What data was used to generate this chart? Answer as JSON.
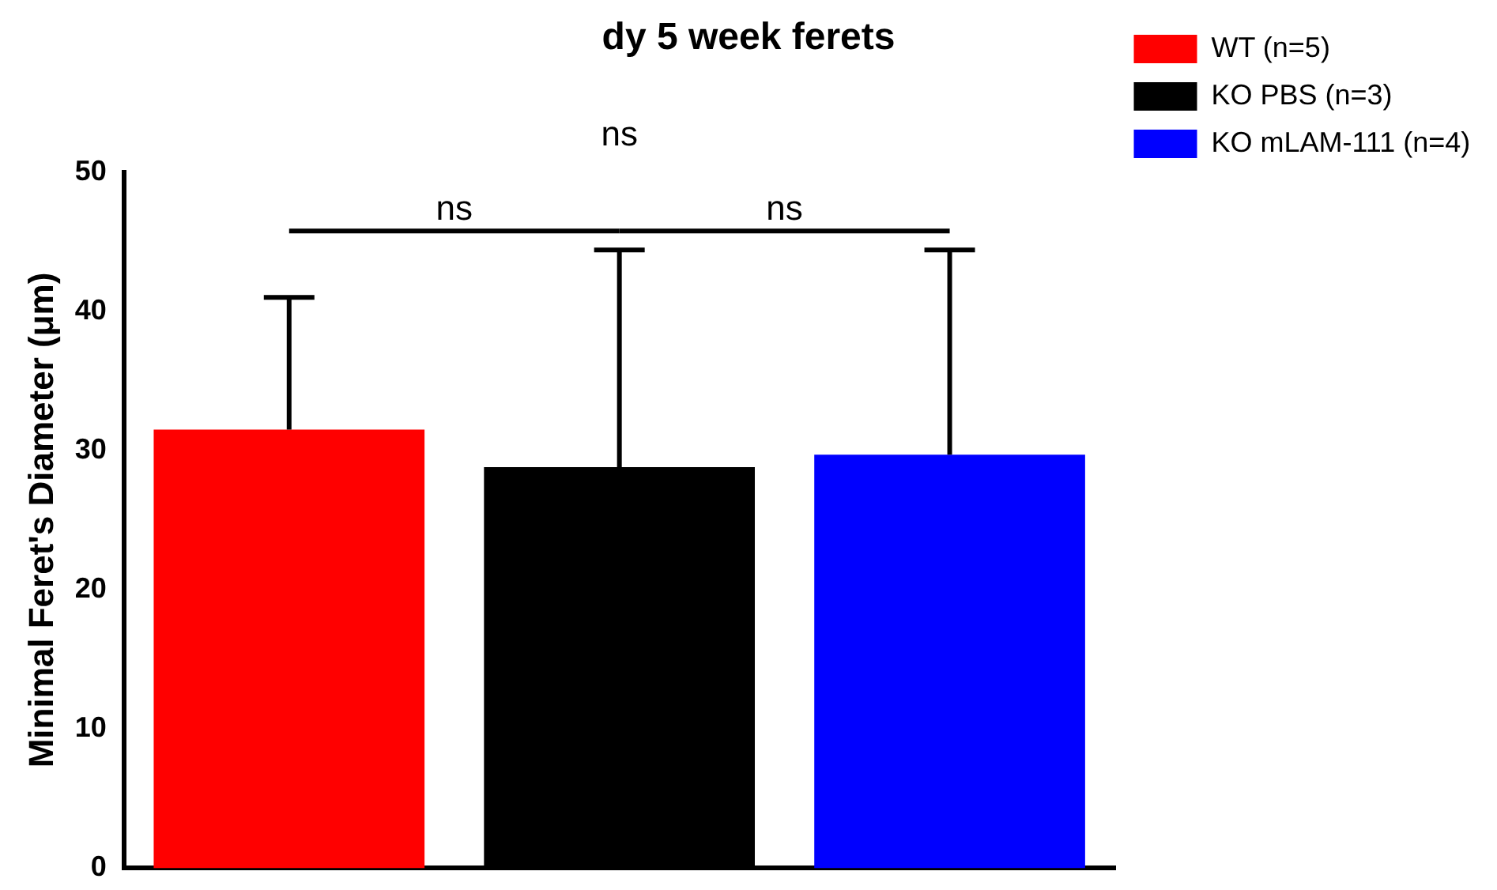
{
  "chart_data": {
    "type": "bar",
    "title": "dy 5 week ferets",
    "ylabel": "Minimal Feret's Diameter (μm)",
    "categories": [
      null,
      null,
      null
    ],
    "series": [
      {
        "name": "WT (n=5)",
        "color": "#ff0000",
        "values": [
          31.5,
          null,
          null
        ],
        "errors": [
          [
            31.5,
            41.0
          ],
          null,
          null
        ]
      },
      {
        "name": "KO PBS (n=3)",
        "color": "#000000",
        "values": [
          null,
          28.8,
          null
        ],
        "errors": [
          null,
          [
            28.8,
            44.4
          ],
          null
        ]
      },
      {
        "name": "KO mLAM-111 (n=4)",
        "color": "#0000ff",
        "values": [
          null,
          null,
          29.7
        ],
        "errors": [
          null,
          null,
          [
            29.7,
            44.4
          ]
        ]
      }
    ],
    "ylim": [
      0,
      50
    ],
    "yticks": [
      0,
      10,
      20,
      30,
      40,
      50
    ],
    "grid": false,
    "legend": "right",
    "annotations": [
      "ns",
      "ns",
      "ns"
    ]
  }
}
